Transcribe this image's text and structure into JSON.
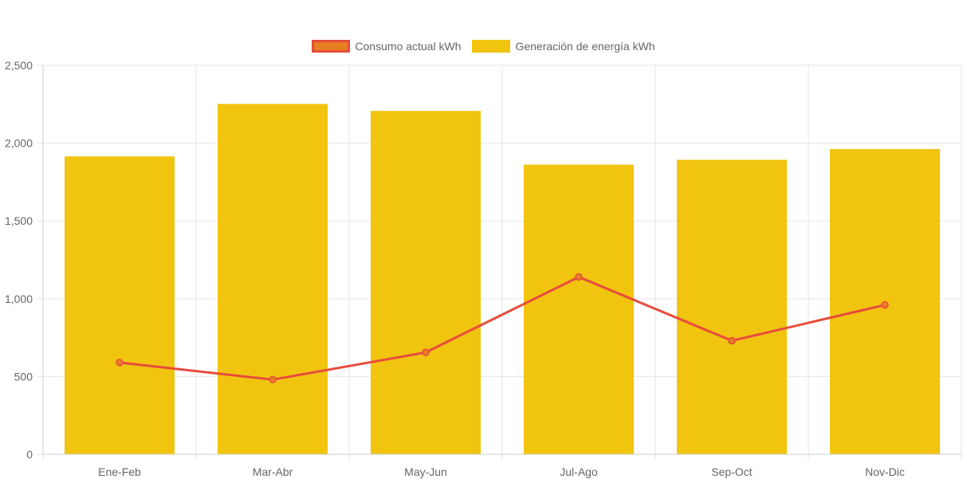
{
  "chart_data": {
    "type": "bar",
    "categories": [
      "Ene-Feb",
      "Mar-Abr",
      "May-Jun",
      "Jul-Ago",
      "Sep-Oct",
      "Nov-Dic"
    ],
    "series": [
      {
        "name": "Consumo actual kWh",
        "type": "line",
        "values": [
          590,
          480,
          655,
          1140,
          730,
          960
        ],
        "color": "#e74c3c",
        "fill_color": "#e67e22"
      },
      {
        "name": "Generación de energía kWh",
        "type": "bar",
        "values": [
          1915,
          2252,
          2207,
          1862,
          1893,
          1962
        ],
        "color": "#f1c40f"
      }
    ],
    "y_ticks": [
      "0",
      "500",
      "1,000",
      "1,500",
      "2,000",
      "2,500"
    ],
    "ylim": [
      0,
      2500
    ],
    "legend_position": "top",
    "grid": true
  }
}
